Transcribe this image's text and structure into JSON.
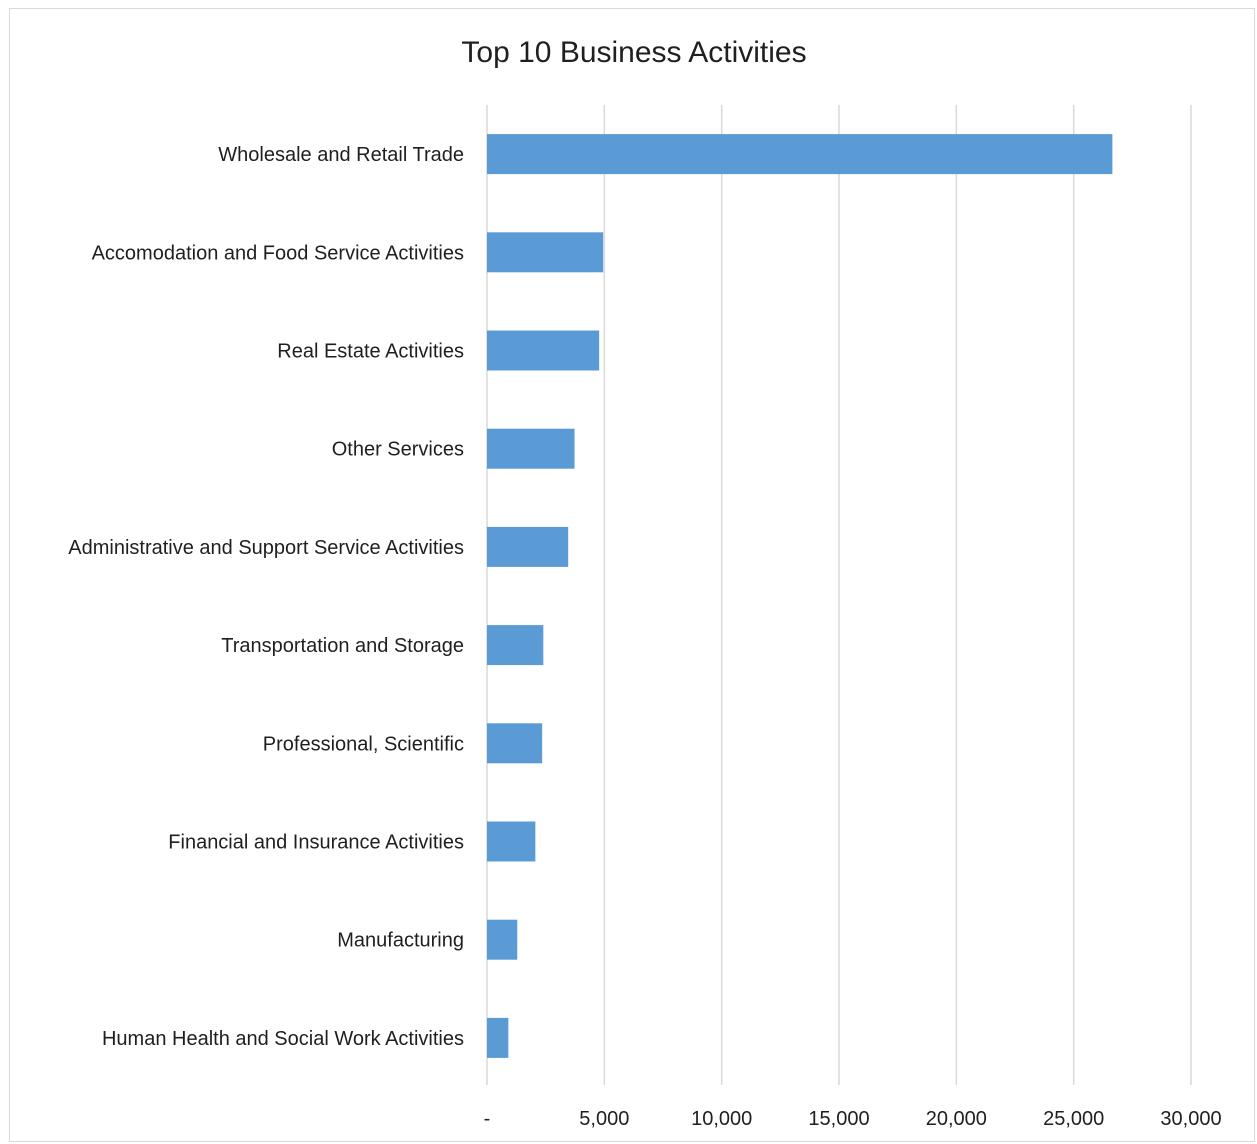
{
  "chart_data": {
    "type": "bar",
    "orientation": "horizontal",
    "title": "Top 10 Business Activities",
    "xlabel": "",
    "ylabel": "",
    "categories": [
      "Wholesale and Retail Trade",
      "Accomodation and Food Service Activities",
      "Real Estate Activities",
      "Other Services",
      "Administrative and Support Service Activities",
      "Transportation and Storage",
      "Professional, Scientific",
      "Financial and Insurance Activities",
      "Manufacturing",
      "Human Health and Social Work Activities"
    ],
    "values": [
      26650,
      4950,
      4780,
      3730,
      3460,
      2400,
      2350,
      2060,
      1290,
      910
    ],
    "xlim": [
      0,
      30000
    ],
    "xticks": [
      0,
      5000,
      10000,
      15000,
      20000,
      25000,
      30000
    ],
    "xtick_labels": [
      "-",
      "5,000",
      "10,000",
      "15,000",
      "20,000",
      "25,000",
      "30,000"
    ],
    "grid": "vertical",
    "legend": "none",
    "colors": {
      "bar": "#5b9bd5",
      "grid": "#d9d9d9",
      "text": "#1f1f1f"
    }
  }
}
